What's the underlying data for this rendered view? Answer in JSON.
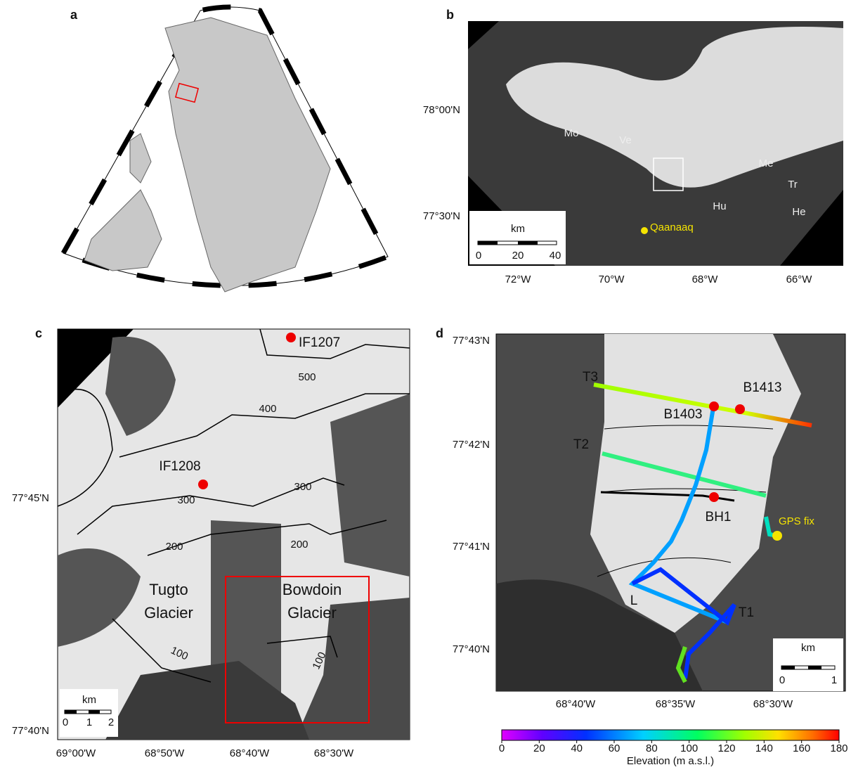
{
  "panels": {
    "a": {
      "label": "a"
    },
    "b": {
      "label": "b",
      "lat_labels": [
        "78°00'N",
        "77°30'N"
      ],
      "lon_labels": [
        "72°W",
        "70°W",
        "68°W",
        "66°W"
      ],
      "places": [
        "Mo",
        "Ve",
        "Me",
        "Tr",
        "Hu",
        "He"
      ],
      "town": "Qaanaaq",
      "scale": {
        "unit": "km",
        "ticks": [
          "0",
          "20",
          "40"
        ]
      }
    },
    "c": {
      "label": "c",
      "lat_labels": [
        "77°45'N",
        "77°40'N"
      ],
      "lon_labels": [
        "69°00'W",
        "68°50'W",
        "68°40'W",
        "68°30'W"
      ],
      "sites": [
        "IF1207",
        "IF1208"
      ],
      "contours": [
        "500",
        "400",
        "300",
        "300",
        "200",
        "200",
        "100",
        "100"
      ],
      "glaciers": [
        [
          "Tugto",
          "Glacier"
        ],
        [
          "Bowdoin",
          "Glacier"
        ]
      ],
      "scale": {
        "unit": "km",
        "ticks": [
          "0",
          "1",
          "2"
        ]
      }
    },
    "d": {
      "label": "d",
      "lat_labels": [
        "77°43'N",
        "77°42'N",
        "77°41'N",
        "77°40'N"
      ],
      "lon_labels": [
        "68°40'W",
        "68°35'W",
        "68°30'W"
      ],
      "tracks": [
        "T3",
        "T2",
        "T1",
        "L"
      ],
      "sites": [
        "B1413",
        "B1403",
        "BH1"
      ],
      "gps": "GPS fix",
      "scale": {
        "unit": "km",
        "ticks": [
          "0",
          "1"
        ]
      },
      "colorbar": {
        "label": "Elevation (m a.s.l.)",
        "lim": [
          0,
          180
        ],
        "ticks": [
          0,
          20,
          40,
          60,
          80,
          100,
          120,
          140,
          160,
          180
        ]
      }
    }
  }
}
